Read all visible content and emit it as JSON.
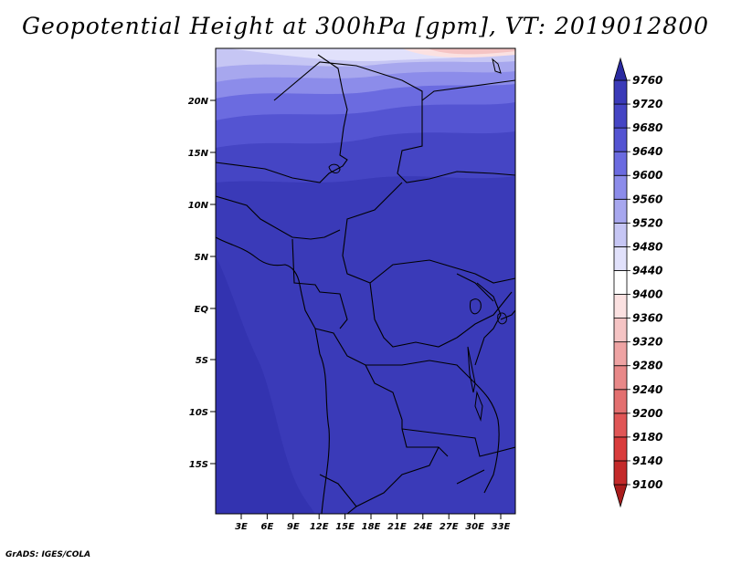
{
  "title": "Geopotential Height at 300hPa [gpm], VT: 2019012800",
  "credit": "GrADS: IGES/COLA",
  "map": {
    "lat_ticks": [
      "20N",
      "15N",
      "10N",
      "5N",
      "EQ",
      "5S",
      "10S",
      "15S"
    ],
    "lon_ticks": [
      "3E",
      "6E",
      "9E",
      "12E",
      "15E",
      "18E",
      "21E",
      "24E",
      "27E",
      "30E",
      "33E"
    ]
  },
  "colorbar": {
    "levels": [
      "9100",
      "9140",
      "9180",
      "9200",
      "9240",
      "9280",
      "9320",
      "9360",
      "9400",
      "9440",
      "9480",
      "9520",
      "9560",
      "9600",
      "9640",
      "9680",
      "9720",
      "9760"
    ],
    "colors": [
      "#a91c1c",
      "#c42a2a",
      "#d93c3c",
      "#e05656",
      "#e37070",
      "#e88888",
      "#eea3a3",
      "#f5c4c4",
      "#fbe1e1",
      "#ffffff",
      "#e1e1fb",
      "#c6c6f4",
      "#a7a7ee",
      "#8c8cea",
      "#6b6be0",
      "#5454d2",
      "#4545c4",
      "#3a3ab8",
      "#2a2aa0"
    ]
  }
}
